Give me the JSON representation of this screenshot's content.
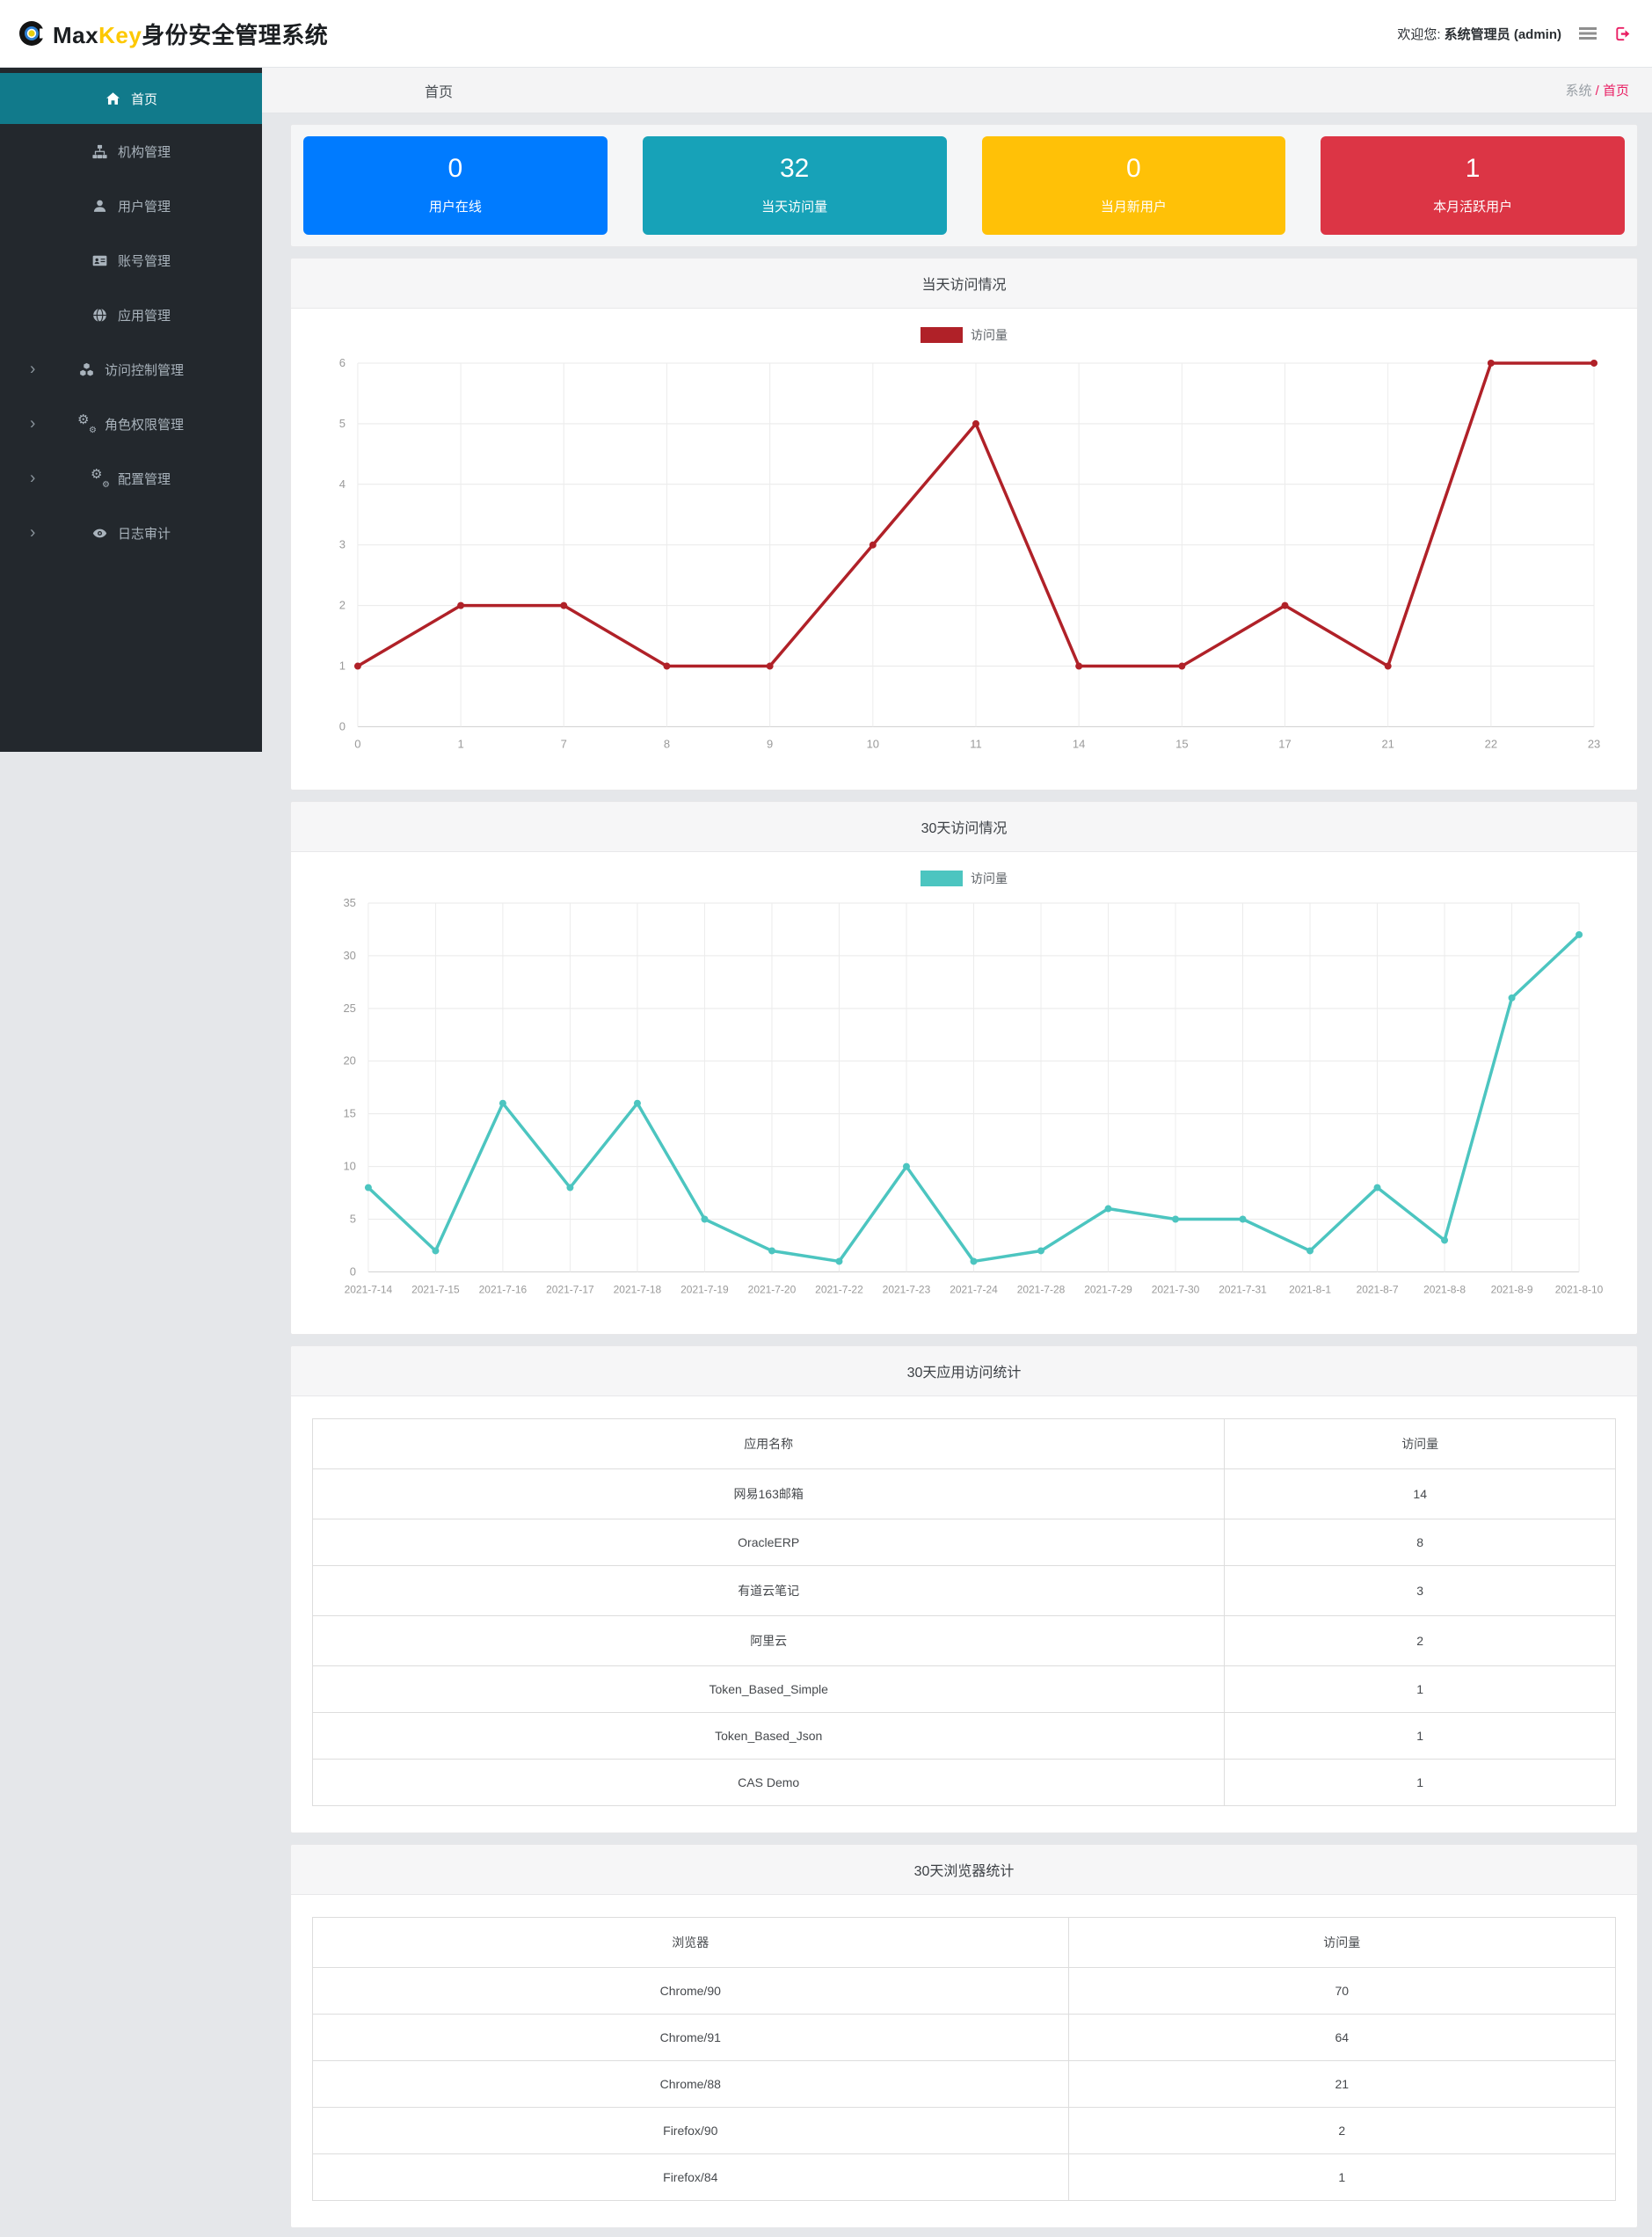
{
  "header": {
    "brand_prefix": "Max",
    "brand_accent": "Key",
    "brand_suffix": "身份安全管理系统",
    "welcome_prefix": "欢迎您:",
    "welcome_user": "系统管理员 (admin)",
    "menu_icon": "hamburger-menu-icon",
    "logout_icon": "logout-icon"
  },
  "sidebar": {
    "items": [
      {
        "label": "首页",
        "icon": "home-icon",
        "active": true,
        "expandable": false
      },
      {
        "label": "机构管理",
        "icon": "sitemap-icon",
        "active": false,
        "expandable": false
      },
      {
        "label": "用户管理",
        "icon": "user-icon",
        "active": false,
        "expandable": false
      },
      {
        "label": "账号管理",
        "icon": "id-card-icon",
        "active": false,
        "expandable": false
      },
      {
        "label": "应用管理",
        "icon": "globe-icon",
        "active": false,
        "expandable": false
      },
      {
        "label": "访问控制管理",
        "icon": "cubes-icon",
        "active": false,
        "expandable": true
      },
      {
        "label": "角色权限管理",
        "icon": "gears-icon",
        "active": false,
        "expandable": true
      },
      {
        "label": "配置管理",
        "icon": "gears-icon",
        "active": false,
        "expandable": true
      },
      {
        "label": "日志审计",
        "icon": "eye-icon",
        "active": false,
        "expandable": true
      }
    ]
  },
  "breadcrumb": {
    "page_title": "首页",
    "trail_root": "系统",
    "trail_sep": "/",
    "trail_current": "首页"
  },
  "stats": [
    {
      "value": "0",
      "label": "用户在线",
      "color": "#007bff"
    },
    {
      "value": "32",
      "label": "当天访问量",
      "color": "#17a2b8"
    },
    {
      "value": "0",
      "label": "当月新用户",
      "color": "#ffc107"
    },
    {
      "value": "1",
      "label": "本月活跃用户",
      "color": "#dc3545"
    }
  ],
  "chart_data": [
    {
      "type": "line",
      "title": "当天访问情况",
      "legend": "访问量",
      "color": "#b02128",
      "categories": [
        "0",
        "1",
        "7",
        "8",
        "9",
        "10",
        "11",
        "14",
        "15",
        "17",
        "21",
        "22",
        "23"
      ],
      "values": [
        1,
        2,
        2,
        1,
        1,
        3,
        5,
        1,
        1,
        2,
        1,
        6,
        6
      ],
      "xlabel": "",
      "ylabel": "",
      "ylim": [
        0,
        6
      ],
      "ytick": 1,
      "grid": true,
      "legend_position": "top-center"
    },
    {
      "type": "line",
      "title": "30天访问情况",
      "legend": "访问量",
      "color": "#4cc5c0",
      "categories": [
        "2021-7-14",
        "2021-7-15",
        "2021-7-16",
        "2021-7-17",
        "2021-7-18",
        "2021-7-19",
        "2021-7-20",
        "2021-7-22",
        "2021-7-23",
        "2021-7-24",
        "2021-7-28",
        "2021-7-29",
        "2021-7-30",
        "2021-7-31",
        "2021-8-1",
        "2021-8-7",
        "2021-8-8",
        "2021-8-9",
        "2021-8-10"
      ],
      "values": [
        8,
        2,
        16,
        8,
        16,
        5,
        2,
        1,
        10,
        1,
        2,
        6,
        5,
        5,
        2,
        8,
        3,
        26,
        32
      ],
      "xlabel": "",
      "ylabel": "",
      "ylim": [
        0,
        35
      ],
      "ytick": 5,
      "grid": true,
      "legend_position": "top-center"
    }
  ],
  "tables": [
    {
      "title": "30天应用访问统计",
      "columns": [
        "应用名称",
        "访问量"
      ],
      "rows": [
        [
          "网易163邮箱",
          "14"
        ],
        [
          "OracleERP",
          "8"
        ],
        [
          "有道云笔记",
          "3"
        ],
        [
          "阿里云",
          "2"
        ],
        [
          "Token_Based_Simple",
          "1"
        ],
        [
          "Token_Based_Json",
          "1"
        ],
        [
          "CAS Demo",
          "1"
        ]
      ]
    },
    {
      "title": "30天浏览器统计",
      "columns": [
        "浏览器",
        "访问量"
      ],
      "rows": [
        [
          "Chrome/90",
          "70"
        ],
        [
          "Chrome/91",
          "64"
        ],
        [
          "Chrome/88",
          "21"
        ],
        [
          "Firefox/90",
          "2"
        ],
        [
          "Firefox/84",
          "1"
        ]
      ]
    }
  ]
}
